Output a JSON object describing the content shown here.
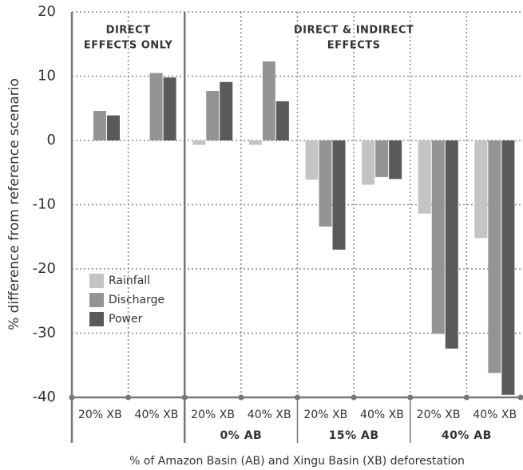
{
  "chart_data": {
    "type": "bar",
    "y_label": "% difference from reference scenario",
    "x_label": "% of Amazon Basin (AB) and Xingu Basin (XB) deforestation",
    "categories": [
      "20% XB",
      "40% XB",
      "20% XB",
      "40% XB",
      "20% XB",
      "40% XB",
      "20% XB",
      "40% XB"
    ],
    "panels": [
      {
        "lines": [
          "DIRECT",
          "EFFECTS ONLY"
        ]
      },
      {
        "lines": [
          "DIRECT & INDIRECT",
          "EFFECTS"
        ]
      }
    ],
    "groups": [
      "0% AB",
      "15% AB",
      "40% AB"
    ],
    "series": [
      {
        "name": "Rainfall",
        "color": "#c4c4c6",
        "values": [
          0,
          0,
          -0.7,
          -0.7,
          -6.1,
          -6.9,
          -11.4,
          -15.2
        ]
      },
      {
        "name": "Discharge",
        "color": "#939496",
        "values": [
          4.6,
          10.5,
          7.7,
          12.3,
          -13.4,
          -5.7,
          -30.1,
          -36.2
        ]
      },
      {
        "name": "Power",
        "color": "#5a5a5c",
        "values": [
          3.9,
          9.8,
          9.1,
          6.1,
          -17.0,
          -6.0,
          -32.4,
          -39.6
        ]
      }
    ],
    "ylim": [
      -40,
      20
    ],
    "yticks": [
      -40,
      -30,
      -20,
      -10,
      0,
      10,
      20
    ],
    "grid": true
  }
}
